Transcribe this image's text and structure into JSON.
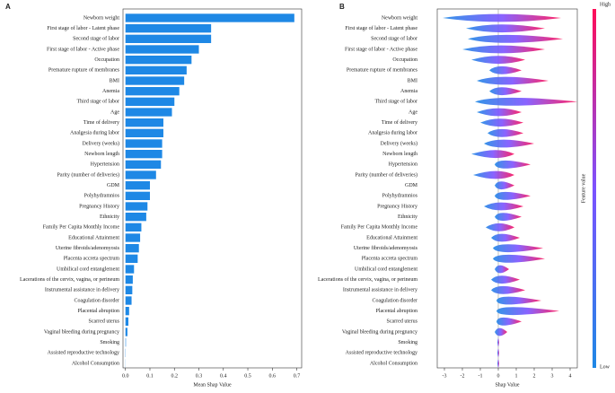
{
  "chart_data": [
    {
      "type": "bar_h",
      "panel": "A",
      "color": "#1e88e5",
      "categories": [
        "Newborn weight",
        "First stage of labor - Latent phase",
        "Second stage of labor",
        "First stage of labor - Active phase",
        "Occupation",
        "Premature rupture of membranes",
        "BMI",
        "Anemia",
        "Third stage of labor",
        "Age",
        "Time of delivery",
        "Analgesia during labor",
        "Delivery (weeks)",
        "Newborn length",
        "Hypertension",
        "Parity (number of deliveries)",
        "GDM",
        "Polyhydramnios",
        "Pregnancy History",
        "Ethnicity",
        "Family Per Capita Monthly Income",
        "Educational Attainment",
        "Uterine fibroids/adenomyosis",
        "Placenta accreta spectrum",
        "Umbilical cord entanglement",
        "Lacerations of the cervix, vagina, or perineum",
        "Instrumental assistance in delivery",
        "Coagulation disorder",
        "Placental abruption",
        "Scarred uterus",
        "Vaginal bleeding during pregnancy",
        "Smoking",
        "Assisted reproductive technology",
        "Alcohol Consumption"
      ],
      "values": [
        0.69,
        0.35,
        0.35,
        0.3,
        0.27,
        0.25,
        0.24,
        0.22,
        0.2,
        0.19,
        0.155,
        0.155,
        0.15,
        0.15,
        0.145,
        0.125,
        0.1,
        0.1,
        0.09,
        0.085,
        0.065,
        0.06,
        0.055,
        0.05,
        0.035,
        0.03,
        0.028,
        0.025,
        0.015,
        0.012,
        0.008,
        0.002,
        0.001,
        0.0005
      ],
      "xlabel": "Mean Shap Value",
      "xlim": [
        -0.01,
        0.72
      ],
      "xticks": [
        {
          "value": 0,
          "label": "0.0"
        },
        0.1,
        0.2,
        0.3,
        0.4,
        0.5,
        0.6,
        0.7
      ]
    },
    {
      "type": "beeswarm",
      "panel": "B",
      "low_color": "#1e88e5",
      "high_color": "#ff0d57",
      "categories": [
        "Newborn weight",
        "First stage of labor - Latent phase",
        "Second stage of labor",
        "First stage of labor - Active phase",
        "Occupation",
        "Premature rupture of membranes",
        "BMI",
        "Anemia",
        "Third stage of labor",
        "Age",
        "Time of delivery",
        "Analgesia during labor",
        "Delivery (weeks)",
        "Newborn length",
        "Hypertension",
        "Parity (number of deliveries)",
        "GDM",
        "Polyhydramnios",
        "Pregnancy History",
        "Ethnicity",
        "Family Per Capita Monthly Income",
        "Educational Attainment",
        "Uterine fibroids/adenomyosis",
        "Placenta accreta spectrum",
        "Umbilical cord entanglement",
        "Lacerations of the cervix, vagina, or perineum",
        "Instrumental assistance in delivery",
        "Coagulation disorder",
        "Placental abruption",
        "Scarred uterus",
        "Vaginal bleeding during pregnancy",
        "Smoking",
        "Assisted reproductive technology",
        "Alcohol Consumption"
      ],
      "low": [
        -3.1,
        -1.8,
        -1.7,
        -2.0,
        -1.5,
        -0.5,
        -1.2,
        -0.5,
        -1.3,
        -1.2,
        -1.0,
        -0.6,
        -0.8,
        -1.5,
        -0.2,
        -1.4,
        -0.2,
        -0.2,
        -0.8,
        -0.2,
        -0.7,
        -0.4,
        -0.3,
        -0.3,
        -0.2,
        -0.4,
        -0.4,
        -0.1,
        -0.1,
        -0.1,
        -0.2,
        -0.05,
        -0.05,
        -0.05
      ],
      "high": [
        3.5,
        2.6,
        3.6,
        2.6,
        1.5,
        1.3,
        2.8,
        1.3,
        4.4,
        1.3,
        1.4,
        1.4,
        2.0,
        0.9,
        1.8,
        0.9,
        0.9,
        1.8,
        1.4,
        1.3,
        0.9,
        1.2,
        2.5,
        2.6,
        0.6,
        1.2,
        1.5,
        2.4,
        3.4,
        1.3,
        0.5,
        0.05,
        0.05,
        0.05
      ],
      "xlabel": "Shap Value",
      "xlim": [
        -3.4,
        4.4
      ],
      "xticks": [
        -3,
        -2,
        -1,
        0,
        1,
        2,
        3,
        4
      ],
      "colorbar": {
        "high": "High",
        "low": "Low",
        "label": "Feature value"
      }
    }
  ]
}
